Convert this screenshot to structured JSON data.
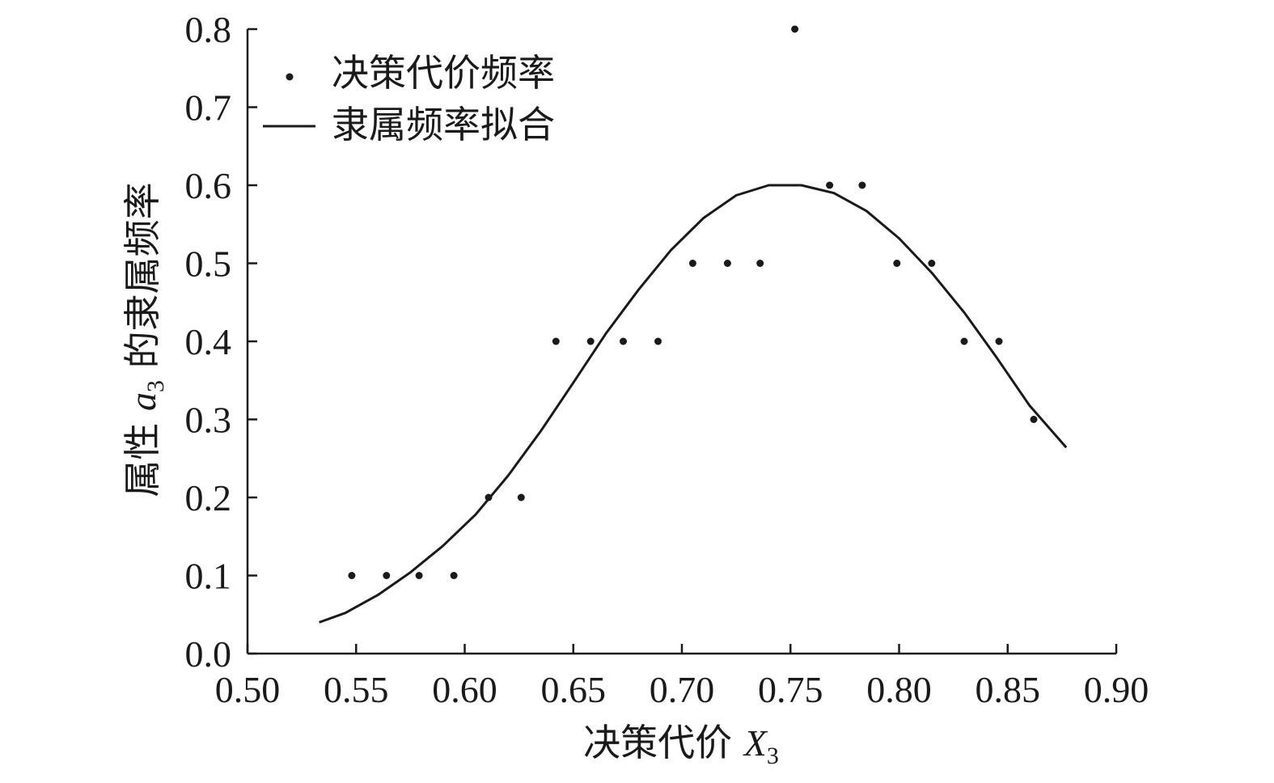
{
  "chart_data": {
    "type": "scatter",
    "xlabel": {
      "prefix": "决策代价 ",
      "var": "X",
      "sub": "3"
    },
    "ylabel": {
      "prefix": "属性 ",
      "var": "a",
      "sub": "3",
      "suffix": " 的隶属频率"
    },
    "xlim": [
      0.5,
      0.9
    ],
    "ylim": [
      0.0,
      0.8
    ],
    "x_ticks": [
      "0.50",
      "0.55",
      "0.60",
      "0.65",
      "0.70",
      "0.75",
      "0.80",
      "0.85",
      "0.90"
    ],
    "y_ticks": [
      "0.0",
      "0.1",
      "0.2",
      "0.3",
      "0.4",
      "0.5",
      "0.6",
      "0.7",
      "0.8"
    ],
    "legend_position": "top-left",
    "grid": false,
    "colors": {
      "axis": "#1a1a1a",
      "points": "#1a1a1a",
      "line": "#1a1a1a"
    },
    "series": [
      {
        "name": "决策代价频率",
        "type": "scatter",
        "x": [
          0.548,
          0.564,
          0.579,
          0.595,
          0.611,
          0.626,
          0.642,
          0.658,
          0.673,
          0.689,
          0.705,
          0.721,
          0.736,
          0.752,
          0.768,
          0.783,
          0.799,
          0.815,
          0.83,
          0.846,
          0.862
        ],
        "y": [
          0.1,
          0.1,
          0.1,
          0.1,
          0.2,
          0.2,
          0.4,
          0.4,
          0.4,
          0.4,
          0.5,
          0.5,
          0.5,
          0.8,
          0.6,
          0.6,
          0.5,
          0.5,
          0.4,
          0.4,
          0.3
        ]
      },
      {
        "name": "隶属频率拟合",
        "type": "line",
        "x": [
          0.533,
          0.545,
          0.56,
          0.575,
          0.59,
          0.605,
          0.62,
          0.635,
          0.65,
          0.665,
          0.68,
          0.695,
          0.71,
          0.725,
          0.74,
          0.755,
          0.77,
          0.785,
          0.8,
          0.815,
          0.83,
          0.845,
          0.86,
          0.877
        ],
        "y": [
          0.04,
          0.052,
          0.075,
          0.104,
          0.138,
          0.178,
          0.228,
          0.285,
          0.347,
          0.41,
          0.466,
          0.517,
          0.558,
          0.587,
          0.6,
          0.6,
          0.59,
          0.567,
          0.532,
          0.488,
          0.437,
          0.379,
          0.318,
          0.264
        ]
      }
    ]
  }
}
